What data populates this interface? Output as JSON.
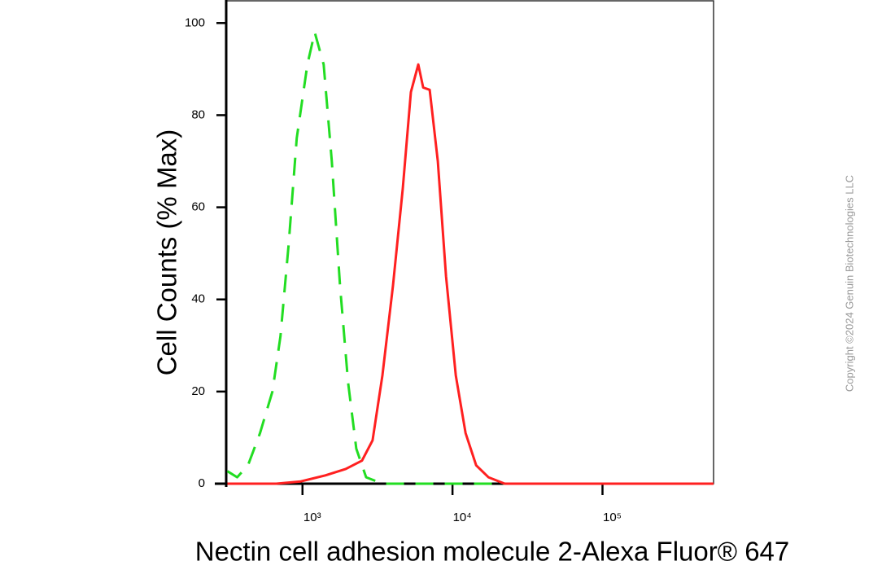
{
  "chart_data": {
    "type": "line",
    "x_label": "Nectin cell adhesion molecule 2-Alexa Fluor® 647",
    "y_label": "Cell Counts (% Max)",
    "xscale": "log",
    "xlim": [
      310,
      550000
    ],
    "ylim": [
      0,
      105
    ],
    "xticks": [
      {
        "value": 1000,
        "label": "10³"
      },
      {
        "value": 10000,
        "label": "10⁴"
      },
      {
        "value": 100000,
        "label": "10⁵"
      }
    ],
    "yticks": [
      0,
      20,
      40,
      60,
      80,
      100
    ],
    "grid": false,
    "series": [
      {
        "color": "#22dd22",
        "linestyle": "dashed",
        "x": [
          316,
          367,
          433,
          521,
          630,
          713,
          809,
          916,
          1078,
          1207,
          1384,
          1569,
          1778,
          2014,
          2284,
          2655,
          3412,
          10000,
          100000,
          550000
        ],
        "values": [
          2.7,
          1.4,
          4,
          11,
          20,
          32,
          52,
          75,
          91,
          98,
          91,
          70,
          43,
          22,
          7.6,
          1.4,
          0,
          0,
          0,
          0
        ]
      },
      {
        "color": "#ff2020",
        "linestyle": "solid",
        "x": [
          316,
          670,
          975,
          1420,
          1941,
          2494,
          2933,
          3412,
          4012,
          4659,
          5280,
          5914,
          6374,
          7047,
          7980,
          9056,
          10520,
          12220,
          14380,
          17350,
          22280,
          550000
        ],
        "values": [
          0,
          0,
          0.5,
          1.8,
          3.2,
          5,
          9.4,
          23.5,
          43,
          64,
          85,
          91,
          86,
          85.5,
          70,
          45,
          23.5,
          11,
          4,
          1.4,
          0,
          0
        ]
      }
    ]
  },
  "watermark": "Copyright ©2024 Genuin Biotechnologies LLC"
}
